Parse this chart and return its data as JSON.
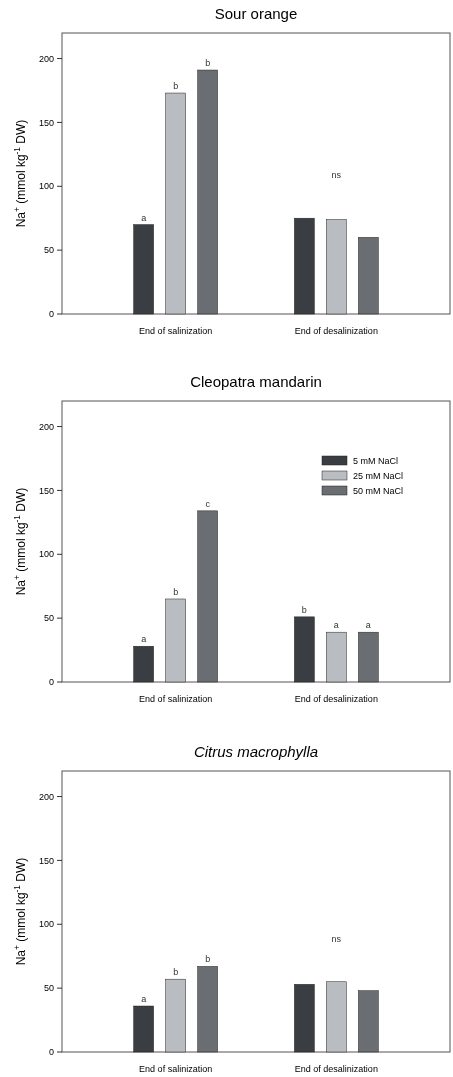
{
  "chart_data": [
    {
      "type": "bar",
      "title": "Sour orange",
      "ylabel": "Na$^{+}$ (mmol kg$^{-1}$ DW)",
      "categories": [
        "End of salinization",
        "End of desalinization"
      ],
      "ylim": [
        0,
        220
      ],
      "yticks": [
        0,
        50,
        100,
        150,
        200
      ],
      "legend": false,
      "series": [
        {
          "color": "#3a3d41",
          "values": [
            70,
            75
          ],
          "value_labels": [
            "a",
            null
          ]
        },
        {
          "color": "#b9bcc0",
          "values": [
            173,
            74
          ],
          "value_labels": [
            "b",
            null
          ]
        },
        {
          "color": "#6a6d72",
          "values": [
            191,
            60
          ],
          "value_labels": [
            "b",
            null
          ]
        }
      ],
      "annotations": [
        "ns"
      ]
    },
    {
      "type": "bar",
      "title": "Cleopatra mandarin",
      "ylabel": "Na$^{+}$ (mmol kg$^{-1}$ DW)",
      "categories": [
        "End of salinization",
        "End of desalinization"
      ],
      "ylim": [
        0,
        220
      ],
      "yticks": [
        0,
        50,
        100,
        150,
        200
      ],
      "legend": "top right",
      "series": [
        {
          "name": "5 mM NaCl",
          "color": "#3a3d41",
          "values": [
            28,
            51
          ],
          "value_labels": [
            "a",
            "b"
          ]
        },
        {
          "name": "25 mM NaCl",
          "color": "#b9bcc0",
          "values": [
            65,
            39
          ],
          "value_labels": [
            "b",
            "a"
          ]
        },
        {
          "name": "50 mM NaCl",
          "color": "#6a6d72",
          "values": [
            134,
            39
          ],
          "value_labels": [
            "c",
            "a"
          ]
        }
      ]
    },
    {
      "type": "bar",
      "title": "Citrus macrophylla",
      "ylabel": "Na$^{+}$ (mmol kg$^{-1}$ DW)",
      "categories": [
        "End of salinization",
        "End of desalinization"
      ],
      "ylim": [
        0,
        220
      ],
      "yticks": [
        0,
        50,
        100,
        150,
        200
      ],
      "legend": false,
      "series": [
        {
          "color": "#3a3d41",
          "values": [
            36,
            53
          ],
          "value_labels": [
            "a",
            null
          ]
        },
        {
          "color": "#b9bcc0",
          "values": [
            57,
            55
          ],
          "value_labels": [
            "b",
            null
          ]
        },
        {
          "color": "#6a6d72",
          "values": [
            67,
            48
          ],
          "value_labels": [
            "b",
            null
          ]
        }
      ],
      "annotations": [
        "ns"
      ]
    }
  ]
}
